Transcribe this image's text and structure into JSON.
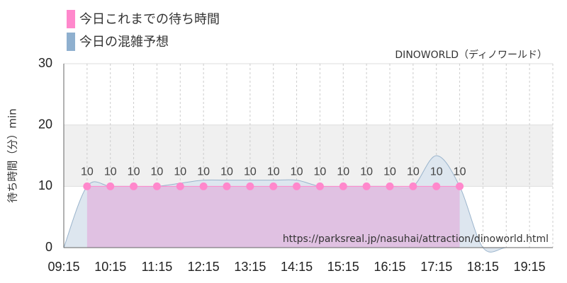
{
  "chart_data": {
    "type": "line",
    "legend": [
      "今日これまでの待ち時間",
      "今日の混雑予想"
    ],
    "subtitle": "DINOWORLD（ディノワールド）",
    "watermark": "https://parksreal.jp/nasuhai/attraction/dinoworld.html",
    "y_label": "待ち時間（分）min",
    "categories": [
      "09:15",
      null,
      "10:15",
      null,
      "11:15",
      null,
      "12:15",
      null,
      "13:15",
      null,
      "14:15",
      null,
      "15:15",
      null,
      "16:15",
      null,
      "17:15",
      null,
      "18:15",
      null,
      "19:15",
      null
    ],
    "series": [
      {
        "name": "今日これまでの待ち時間",
        "color": "#ff88cc",
        "fill": "#e0bce0",
        "values": [
          null,
          10,
          10,
          10,
          10,
          10,
          10,
          10,
          10,
          10,
          10,
          10,
          10,
          10,
          10,
          10,
          10,
          10,
          null,
          null,
          null,
          null
        ]
      },
      {
        "name": "今日の混雑予想",
        "color": "#9ab4cc",
        "fill": "#dde6ef",
        "values": [
          0,
          10,
          10,
          10,
          10,
          10.5,
          11,
          11,
          11,
          11,
          11,
          10,
          10,
          10,
          10,
          10,
          15,
          10,
          0,
          0,
          0,
          0
        ]
      }
    ],
    "ylim": [
      0,
      30
    ],
    "yticks": [
      0,
      10,
      20,
      30
    ],
    "shaded_band": [
      10,
      20
    ],
    "grid": true
  }
}
